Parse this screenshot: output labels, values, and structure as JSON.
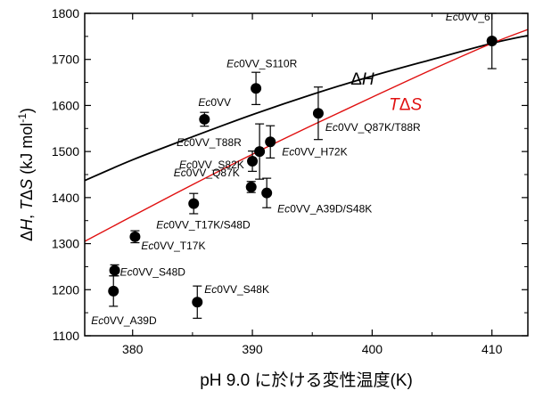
{
  "chart_data": {
    "type": "scatter",
    "xlabel": "pH 9.0 に於ける変性温度(K)",
    "ylabel": "ΔH, TΔS (kJ mol⁻¹)",
    "ylabel_parts": {
      "delta1": "Δ",
      "H": "H",
      "comma": ", ",
      "T": "T",
      "delta2": "Δ",
      "S": "S",
      "units": " (kJ mol",
      "exp": "-1",
      "close": ")"
    },
    "xlim": [
      376,
      413
    ],
    "ylim": [
      1100,
      1800
    ],
    "x_ticks": [
      380,
      390,
      400,
      410
    ],
    "y_ticks": [
      1100,
      1200,
      1300,
      1400,
      1500,
      1600,
      1700,
      1800
    ],
    "grid": false,
    "points": [
      {
        "label": "Ec0VV_6",
        "italic": "Ec",
        "rest": "0VV_6",
        "x": 410.0,
        "y": 1740,
        "err": 60
      },
      {
        "label": "Ec0VV_S110R",
        "italic": "Ec",
        "rest": "0VV_S110R",
        "x": 390.3,
        "y": 1637,
        "err": 35
      },
      {
        "label": "Ec0VV",
        "italic": "Ec",
        "rest": "0VV",
        "x": 386.0,
        "y": 1570,
        "err": 15
      },
      {
        "label": "Ec0VV_Q87K/T88R",
        "italic": "Ec",
        "rest": "0VV_Q87K/T88R",
        "x": 395.5,
        "y": 1583,
        "err": 57
      },
      {
        "label": "Ec0VV_T88R",
        "italic": "Ec",
        "rest": "0VV_T88R",
        "x": 390.6,
        "y": 1500,
        "err": 60
      },
      {
        "label": "Ec0VV_H72K",
        "italic": "Ec",
        "rest": "0VV_H72K",
        "x": 391.5,
        "y": 1521,
        "err": 35
      },
      {
        "label": "Ec0VV_S82K",
        "italic": "Ec",
        "rest": "0VV_S82K",
        "x": 390.0,
        "y": 1479,
        "err": 22
      },
      {
        "label": "Ec0VV_Q87K",
        "italic": "Ec",
        "rest": "0VV_Q87K",
        "x": 389.9,
        "y": 1423,
        "err": 12
      },
      {
        "label": "Ec0VV_A39D/S48K",
        "italic": "Ec",
        "rest": "0VV_A39D/S48K",
        "x": 391.2,
        "y": 1410,
        "err": 32
      },
      {
        "label": "Ec0VV_T17K/S48D",
        "italic": "Ec",
        "rest": "0VV_T17K/S48D",
        "x": 385.1,
        "y": 1387,
        "err": 22
      },
      {
        "label": "Ec0VV_T17K",
        "italic": "Ec",
        "rest": "0VV_T17K",
        "x": 380.2,
        "y": 1315,
        "err": 13
      },
      {
        "label": "Ec0VV_S48D",
        "italic": "Ec",
        "rest": "0VV_S48D",
        "x": 378.5,
        "y": 1242,
        "err": 12
      },
      {
        "label": "Ec0VV_A39D",
        "italic": "Ec",
        "rest": "0VV_A39D",
        "x": 378.4,
        "y": 1197,
        "err": 33
      },
      {
        "label": "Ec0VV_S48K",
        "italic": "Ec",
        "rest": "0VV_S48K",
        "x": 385.4,
        "y": 1173,
        "err": 35
      }
    ],
    "curves": [
      {
        "name": "ΔH",
        "color": "#000000",
        "x": [
          376,
          380,
          385,
          390,
          395,
          400,
          405,
          410,
          413
        ],
        "y": [
          1437,
          1482,
          1532,
          1580,
          1624,
          1664,
          1700,
          1735,
          1752
        ]
      },
      {
        "name": "TΔS",
        "color": "#e01010",
        "x": [
          376,
          380,
          385,
          390,
          395,
          400,
          405,
          410,
          413
        ],
        "y": [
          1305,
          1360,
          1428,
          1494,
          1557,
          1618,
          1678,
          1735,
          1765
        ]
      }
    ],
    "curve_labels": [
      {
        "delta": "Δ",
        "var": "H",
        "color": "#000000"
      },
      {
        "var1": "T",
        "delta": "Δ",
        "var2": "S",
        "color": "#e01010"
      }
    ]
  }
}
